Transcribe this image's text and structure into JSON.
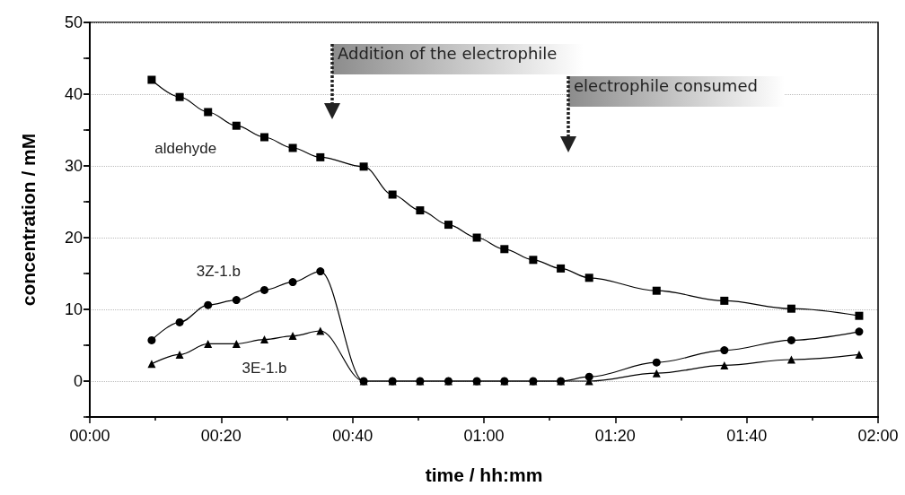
{
  "chart_data": {
    "type": "line",
    "xlabel": "time / hh:mm",
    "ylabel": "concentration / mM",
    "xlim": [
      0,
      2
    ],
    "xticks": [
      {
        "value": 0,
        "label": "00:00"
      },
      {
        "value": 0.3333,
        "label": "00:20"
      },
      {
        "value": 0.6667,
        "label": "00:40"
      },
      {
        "value": 1,
        "label": "01:00"
      },
      {
        "value": 1.3333,
        "label": "01:20"
      },
      {
        "value": 1.6667,
        "label": "01:40"
      },
      {
        "value": 2,
        "label": "02:00"
      }
    ],
    "ylim": [
      -5,
      50
    ],
    "yticks": [
      0,
      10,
      20,
      30,
      40,
      50
    ],
    "grid": "y",
    "legend": false,
    "line_style": "solid",
    "x": [
      0.157,
      0.228,
      0.3,
      0.372,
      0.443,
      0.515,
      0.585,
      0.695,
      0.768,
      0.838,
      0.91,
      0.982,
      1.052,
      1.125,
      1.195,
      1.267,
      1.438,
      1.61,
      1.78,
      1.952
    ],
    "series": [
      {
        "name": "aldehyde",
        "color": "#000000",
        "marker": "square",
        "values": [
          42.0,
          39.6,
          37.5,
          35.6,
          34.0,
          32.5,
          31.2,
          29.9,
          26.0,
          23.8,
          21.8,
          20.0,
          18.4,
          16.9,
          15.7,
          14.4,
          12.6,
          11.2,
          10.1,
          9.1
        ]
      },
      {
        "name": "3Z-1.b",
        "color": "#000000",
        "marker": "circle",
        "values": [
          5.7,
          8.2,
          10.6,
          11.3,
          12.7,
          13.8,
          15.3,
          0,
          0,
          0,
          0,
          0,
          0,
          0,
          0,
          0.6,
          2.6,
          4.3,
          5.7,
          6.9
        ]
      },
      {
        "name": "3E-1.b",
        "color": "#000000",
        "marker": "triangle",
        "values": [
          2.4,
          3.7,
          5.2,
          5.2,
          5.8,
          6.3,
          7.0,
          0,
          0,
          0,
          0,
          0,
          0,
          0,
          0,
          0,
          1.1,
          2.2,
          3.0,
          3.7
        ]
      }
    ],
    "annotations": [
      "Addition of the electrophile",
      "electrophile consumed"
    ]
  }
}
